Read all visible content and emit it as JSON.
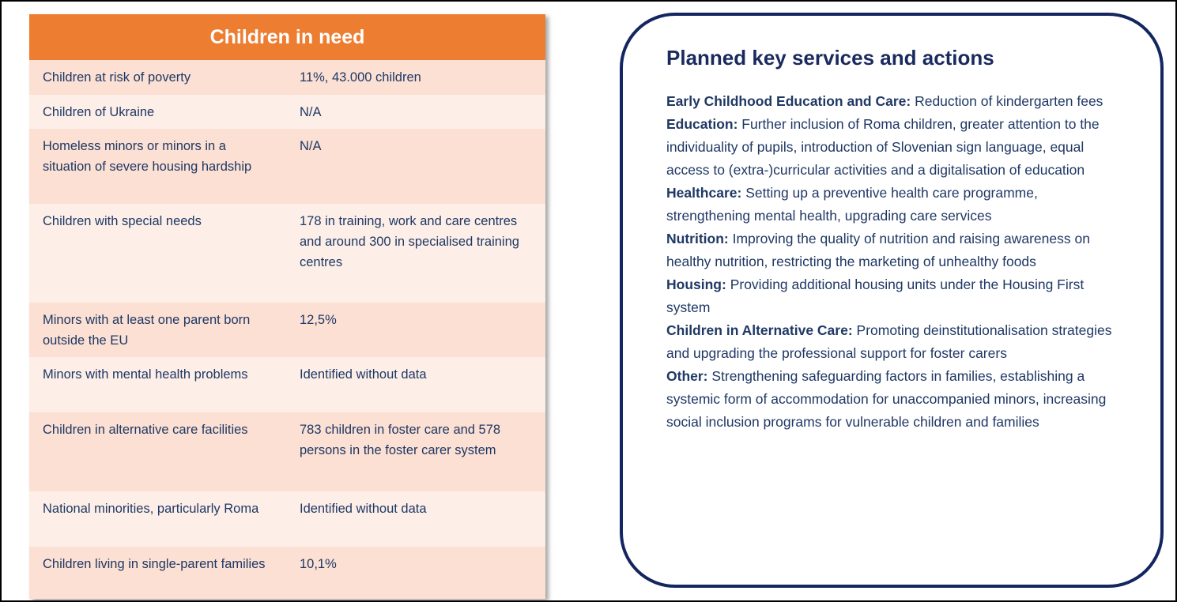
{
  "table": {
    "header": "Children in need",
    "rows": [
      [
        "Children at risk of poverty",
        "11%, 43.000 children"
      ],
      [
        "Children of Ukraine",
        "N/A"
      ],
      [
        "Homeless minors or minors in a situation of severe housing hardship",
        "N/A"
      ],
      [
        "Children with special needs",
        "178 in training, work and care centres and around 300 in specialised training centres"
      ],
      [
        "Minors with at least one parent born outside the EU",
        "12,5%"
      ],
      [
        "Minors with mental health problems",
        "Identified without data"
      ],
      [
        "Children in alternative care facilities",
        "783 children in foster care and 578 persons in the foster carer system"
      ],
      [
        "National minorities, particularly Roma",
        "Identified without data"
      ],
      [
        "Children living in single-parent families",
        "10,1%"
      ]
    ]
  },
  "panel": {
    "title": "Planned key services and actions",
    "items": [
      {
        "heading": "Early Childhood Education and Care:",
        "text": "Reduction of kindergarten fees"
      },
      {
        "heading": "Education:",
        "text": "Further inclusion of Roma children, greater attention to the individuality of pupils, introduction of Slovenian sign language, equal access to (extra-)curricular activities and a digitalisation of education"
      },
      {
        "heading": "Healthcare:",
        "text": "Setting up a preventive health care programme, strengthening mental health, upgrading care services"
      },
      {
        "heading": "Nutrition:",
        "text": "Improving the quality of nutrition and raising awareness on healthy nutrition, restricting the marketing of unhealthy foods"
      },
      {
        "heading": "Housing:",
        "text": "Providing additional housing units under the Housing First system"
      },
      {
        "heading": "Children in Alternative Care:",
        "text": "Promoting deinstitutionalisation strategies and upgrading the professional support for foster carers"
      },
      {
        "heading": "Other:",
        "text": "Strengthening safeguarding factors in families, establishing a systemic form of accommodation for unaccompanied minors, increasing social inclusion programs for vulnerable children and families"
      }
    ]
  }
}
